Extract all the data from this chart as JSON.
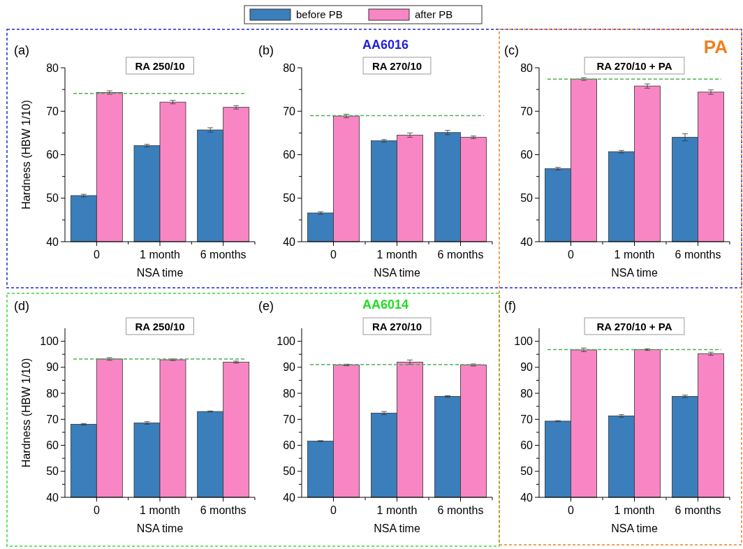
{
  "chart_data": [
    {
      "type": "bar",
      "title": "RA 250/10",
      "xlabel": "NSA time",
      "ylabel": "Hardness (HBW 1/10)",
      "categories": [
        "0",
        "1 month",
        "6 months"
      ],
      "legend": "top",
      "ylim": [
        40,
        80
      ],
      "yticks": [
        40,
        {
          "value": 45,
          "label": null
        },
        50,
        {
          "value": 55,
          "label": null
        },
        60,
        {
          "value": 65,
          "label": null
        },
        70,
        {
          "value": 75,
          "label": null
        },
        80
      ],
      "series": [
        {
          "name": "before PB",
          "color": "#3a7ebb",
          "values": [
            50.6,
            62.1,
            65.7
          ],
          "errors": [
            0.3,
            0.3,
            0.5
          ]
        },
        {
          "name": "after PB",
          "color": "#f886c4",
          "values": [
            74.3,
            72.1,
            70.9
          ],
          "errors": [
            0.4,
            0.4,
            0.4
          ]
        }
      ],
      "ref_lines": [
        {
          "axis": "y",
          "value": 74.1,
          "color": "#4caf50",
          "line_style": "dashed"
        }
      ],
      "annotations": [
        "(a)"
      ]
    },
    {
      "type": "bar",
      "title": "RA 270/10",
      "xlabel": "NSA time",
      "categories": [
        "0",
        "1 month",
        "6 months"
      ],
      "ylim": [
        40,
        80
      ],
      "yticks": [
        40,
        {
          "value": 45,
          "label": null
        },
        50,
        {
          "value": 55,
          "label": null
        },
        60,
        {
          "value": 65,
          "label": null
        },
        70,
        {
          "value": 75,
          "label": null
        },
        80
      ],
      "series": [
        {
          "color": "#3a7ebb",
          "values": [
            46.6,
            63.2,
            65.1
          ],
          "errors": [
            0.3,
            0.3,
            0.5
          ]
        },
        {
          "color": "#f886c4",
          "values": [
            68.9,
            64.5,
            64.0
          ],
          "errors": [
            0.4,
            0.5,
            0.3
          ]
        }
      ],
      "ref_lines": [
        {
          "axis": "y",
          "value": 69.0,
          "color": "#4caf50",
          "line_style": "dashed"
        }
      ],
      "annotations": [
        "(b)",
        "AA6016"
      ]
    },
    {
      "type": "bar",
      "title": "RA 270/10 + PA",
      "xlabel": "NSA time",
      "categories": [
        "0",
        "1 month",
        "6 months"
      ],
      "ylim": [
        40,
        80
      ],
      "yticks": [
        40,
        {
          "value": 45,
          "label": null
        },
        50,
        {
          "value": 55,
          "label": null
        },
        60,
        {
          "value": 65,
          "label": null
        },
        70,
        {
          "value": 75,
          "label": null
        },
        80
      ],
      "series": [
        {
          "color": "#3a7ebb",
          "values": [
            56.8,
            60.7,
            64.0
          ],
          "errors": [
            0.3,
            0.3,
            0.8
          ]
        },
        {
          "color": "#f886c4",
          "values": [
            77.4,
            75.8,
            74.4
          ],
          "errors": [
            0.3,
            0.5,
            0.5
          ]
        }
      ],
      "ref_lines": [
        {
          "axis": "y",
          "value": 77.4,
          "color": "#4caf50",
          "line_style": "dashed"
        }
      ],
      "annotations": [
        "(c)",
        "PA"
      ]
    },
    {
      "type": "bar",
      "title": "RA 250/10",
      "xlabel": "NSA time",
      "ylabel": "Hardness (HBW 1/10)",
      "categories": [
        "0",
        "1 month",
        "6 months"
      ],
      "ylim": [
        40,
        105
      ],
      "yticks": [
        40,
        {
          "value": 45,
          "label": null
        },
        50,
        {
          "value": 55,
          "label": null
        },
        60,
        {
          "value": 65,
          "label": null
        },
        70,
        {
          "value": 75,
          "label": null
        },
        80,
        {
          "value": 85,
          "label": null
        },
        90,
        {
          "value": 95,
          "label": null
        },
        100
      ],
      "series": [
        {
          "color": "#3a7ebb",
          "values": [
            68.1,
            68.6,
            73.0
          ],
          "errors": [
            0.3,
            0.5,
            0.2
          ]
        },
        {
          "color": "#f886c4",
          "values": [
            93.2,
            92.9,
            92.0
          ],
          "errors": [
            0.5,
            0.3,
            0.4
          ]
        }
      ],
      "ref_lines": [
        {
          "axis": "y",
          "value": 93.2,
          "color": "#4caf50",
          "line_style": "dashed"
        }
      ],
      "annotations": [
        "(d)"
      ]
    },
    {
      "type": "bar",
      "title": "RA 270/10",
      "xlabel": "NSA time",
      "categories": [
        "0",
        "1 month",
        "6 months"
      ],
      "ylim": [
        40,
        105
      ],
      "yticks": [
        40,
        {
          "value": 45,
          "label": null
        },
        50,
        {
          "value": 55,
          "label": null
        },
        60,
        {
          "value": 65,
          "label": null
        },
        70,
        {
          "value": 75,
          "label": null
        },
        80,
        {
          "value": 85,
          "label": null
        },
        90,
        {
          "value": 95,
          "label": null
        },
        100
      ],
      "series": [
        {
          "color": "#3a7ebb",
          "values": [
            61.6,
            72.4,
            78.8
          ],
          "errors": [
            0.2,
            0.6,
            0.3
          ]
        },
        {
          "color": "#f886c4",
          "values": [
            90.9,
            92.0,
            90.9
          ],
          "errors": [
            0.3,
            0.8,
            0.4
          ]
        }
      ],
      "ref_lines": [
        {
          "axis": "y",
          "value": 91.0,
          "color": "#4caf50",
          "line_style": "dashed"
        }
      ],
      "annotations": [
        "(e)",
        "AA6014"
      ]
    },
    {
      "type": "bar",
      "title": "RA 270/10 + PA",
      "xlabel": "NSA time",
      "categories": [
        "0",
        "1 month",
        "6 months"
      ],
      "ylim": [
        40,
        105
      ],
      "yticks": [
        40,
        {
          "value": 45,
          "label": null
        },
        50,
        {
          "value": 55,
          "label": null
        },
        60,
        {
          "value": 65,
          "label": null
        },
        70,
        {
          "value": 75,
          "label": null
        },
        80,
        {
          "value": 85,
          "label": null
        },
        90,
        {
          "value": 95,
          "label": null
        },
        100
      ],
      "series": [
        {
          "color": "#3a7ebb",
          "values": [
            69.3,
            71.3,
            78.8
          ],
          "errors": [
            0.2,
            0.5,
            0.5
          ]
        },
        {
          "color": "#f886c4",
          "values": [
            96.7,
            96.8,
            95.2
          ],
          "errors": [
            0.7,
            0.3,
            0.6
          ]
        }
      ],
      "ref_lines": [
        {
          "axis": "y",
          "value": 96.8,
          "color": "#4caf50",
          "line_style": "dashed"
        }
      ],
      "annotations": [
        "(f)"
      ]
    }
  ]
}
